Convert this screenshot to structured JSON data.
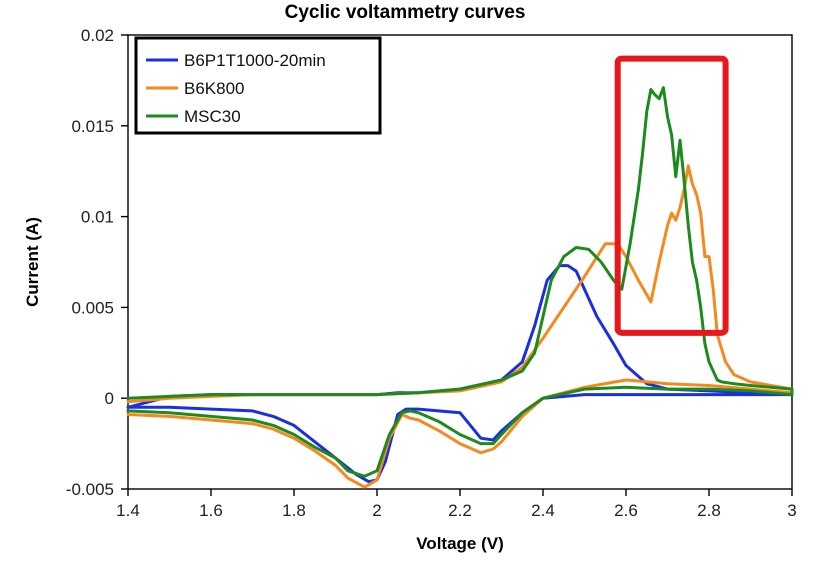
{
  "chart_data": {
    "type": "line",
    "title": "Cyclic voltammetry curves",
    "xlabel": "Voltage (V)",
    "ylabel": "Current (A)",
    "xlim": [
      1.4,
      3.0
    ],
    "ylim": [
      -0.005,
      0.02
    ],
    "xticks": [
      1.4,
      1.6,
      1.8,
      2.0,
      2.2,
      2.4,
      2.6,
      2.8,
      3.0
    ],
    "xtick_labels": [
      "1.4",
      "1.6",
      "1.8",
      "2",
      "2.2",
      "2.4",
      "2.6",
      "2.8",
      "3"
    ],
    "yticks": [
      -0.005,
      0,
      0.005,
      0.01,
      0.015,
      0.02
    ],
    "ytick_labels": [
      "-0.005",
      "0",
      "0.005",
      "0.01",
      "0.015",
      "0.02"
    ],
    "legend_position": "top-left",
    "highlight_box": {
      "x_range": [
        2.58,
        2.84
      ],
      "y_range": [
        0.0036,
        0.0187
      ],
      "color": "#e8171c"
    },
    "series": [
      {
        "name": "B6P1T1000-20min",
        "color": "#1a2fe0",
        "x": [
          1.4,
          1.5,
          1.6,
          1.7,
          1.8,
          1.9,
          2.0,
          2.05,
          2.1,
          2.2,
          2.3,
          2.35,
          2.38,
          2.41,
          2.44,
          2.46,
          2.48,
          2.5,
          2.53,
          2.57,
          2.6,
          2.65,
          2.7,
          2.8,
          2.9,
          3.0,
          3.0,
          2.9,
          2.8,
          2.7,
          2.6,
          2.5,
          2.4,
          2.35,
          2.3,
          2.28,
          2.25,
          2.2,
          2.1,
          2.08,
          2.07,
          2.05,
          2.02,
          2.0,
          1.98,
          1.95,
          1.9,
          1.85,
          1.8,
          1.75,
          1.7,
          1.6,
          1.5,
          1.4
        ],
        "y": [
          -0.0005,
          0.0001,
          0.0002,
          0.0002,
          0.0002,
          0.0002,
          0.0002,
          0.0003,
          0.0003,
          0.0005,
          0.001,
          0.002,
          0.004,
          0.0065,
          0.0073,
          0.0073,
          0.007,
          0.006,
          0.0045,
          0.003,
          0.0018,
          0.0008,
          0.0005,
          0.0004,
          0.0003,
          0.0003,
          0.0002,
          0.0002,
          0.0002,
          0.0002,
          0.0002,
          0.0002,
          0.0,
          -0.0008,
          -0.0018,
          -0.0023,
          -0.0022,
          -0.0008,
          -0.0006,
          -0.0006,
          -0.0006,
          -0.0009,
          -0.0035,
          -0.0045,
          -0.0046,
          -0.0042,
          -0.0033,
          -0.0024,
          -0.0015,
          -0.001,
          -0.0007,
          -0.0006,
          -0.0005,
          -0.0005
        ]
      },
      {
        "name": "B6K800",
        "color": "#f4891f",
        "x": [
          1.4,
          1.5,
          1.6,
          1.7,
          1.8,
          1.9,
          2.0,
          2.1,
          2.2,
          2.3,
          2.35,
          2.4,
          2.45,
          2.5,
          2.55,
          2.58,
          2.6,
          2.63,
          2.66,
          2.68,
          2.7,
          2.71,
          2.72,
          2.73,
          2.74,
          2.75,
          2.76,
          2.77,
          2.78,
          2.79,
          2.8,
          2.81,
          2.82,
          2.84,
          2.86,
          2.9,
          3.0,
          3.0,
          2.9,
          2.8,
          2.7,
          2.6,
          2.5,
          2.4,
          2.35,
          2.3,
          2.28,
          2.25,
          2.2,
          2.15,
          2.1,
          2.08,
          2.06,
          2.03,
          2.0,
          1.97,
          1.93,
          1.9,
          1.85,
          1.8,
          1.75,
          1.7,
          1.6,
          1.5,
          1.4
        ],
        "y": [
          -0.0002,
          0.0,
          0.0001,
          0.0002,
          0.0002,
          0.0002,
          0.0002,
          0.0003,
          0.0004,
          0.0009,
          0.0017,
          0.0033,
          0.005,
          0.0067,
          0.0085,
          0.0085,
          0.0078,
          0.0065,
          0.0053,
          0.0075,
          0.0095,
          0.0102,
          0.0098,
          0.0105,
          0.0115,
          0.0128,
          0.0118,
          0.0112,
          0.0102,
          0.0078,
          0.0078,
          0.006,
          0.0035,
          0.002,
          0.0013,
          0.0009,
          0.0005,
          0.0003,
          0.0005,
          0.0007,
          0.0008,
          0.001,
          0.0006,
          0.0,
          -0.001,
          -0.0024,
          -0.0028,
          -0.003,
          -0.0025,
          -0.0018,
          -0.0012,
          -0.0011,
          -0.0009,
          -0.0022,
          -0.0045,
          -0.0049,
          -0.0044,
          -0.0037,
          -0.0029,
          -0.0022,
          -0.0017,
          -0.0014,
          -0.0012,
          -0.001,
          -0.0009
        ]
      },
      {
        "name": "MSC30",
        "color": "#1e8a1e",
        "x": [
          1.4,
          1.5,
          1.6,
          1.7,
          1.8,
          1.9,
          2.0,
          2.1,
          2.2,
          2.3,
          2.35,
          2.38,
          2.4,
          2.42,
          2.45,
          2.48,
          2.51,
          2.54,
          2.57,
          2.59,
          2.61,
          2.63,
          2.64,
          2.65,
          2.66,
          2.67,
          2.68,
          2.69,
          2.7,
          2.71,
          2.72,
          2.73,
          2.74,
          2.75,
          2.76,
          2.77,
          2.78,
          2.79,
          2.8,
          2.81,
          2.82,
          2.83,
          2.86,
          2.9,
          3.0,
          3.0,
          2.9,
          2.8,
          2.7,
          2.6,
          2.5,
          2.4,
          2.35,
          2.3,
          2.28,
          2.25,
          2.2,
          2.15,
          2.1,
          2.08,
          2.06,
          2.03,
          2.0,
          1.97,
          1.93,
          1.9,
          1.85,
          1.8,
          1.75,
          1.7,
          1.6,
          1.5,
          1.4
        ],
        "y": [
          0.0,
          0.0001,
          0.0002,
          0.0002,
          0.0002,
          0.0002,
          0.0002,
          0.0003,
          0.0005,
          0.001,
          0.0015,
          0.0025,
          0.0045,
          0.0065,
          0.0078,
          0.0083,
          0.0082,
          0.0075,
          0.0065,
          0.006,
          0.0085,
          0.0115,
          0.0135,
          0.0158,
          0.017,
          0.0167,
          0.0165,
          0.0171,
          0.0155,
          0.0145,
          0.0122,
          0.0142,
          0.012,
          0.0095,
          0.0075,
          0.0065,
          0.005,
          0.003,
          0.002,
          0.0015,
          0.001,
          0.0009,
          0.0008,
          0.0007,
          0.0005,
          0.0002,
          0.0004,
          0.0005,
          0.0005,
          0.0006,
          0.0005,
          0.0,
          -0.0008,
          -0.002,
          -0.0025,
          -0.0025,
          -0.002,
          -0.0013,
          -0.0008,
          -0.0007,
          -0.0008,
          -0.002,
          -0.004,
          -0.0043,
          -0.004,
          -0.0033,
          -0.0027,
          -0.002,
          -0.0015,
          -0.0012,
          -0.001,
          -0.0008,
          -0.0007
        ]
      }
    ]
  }
}
